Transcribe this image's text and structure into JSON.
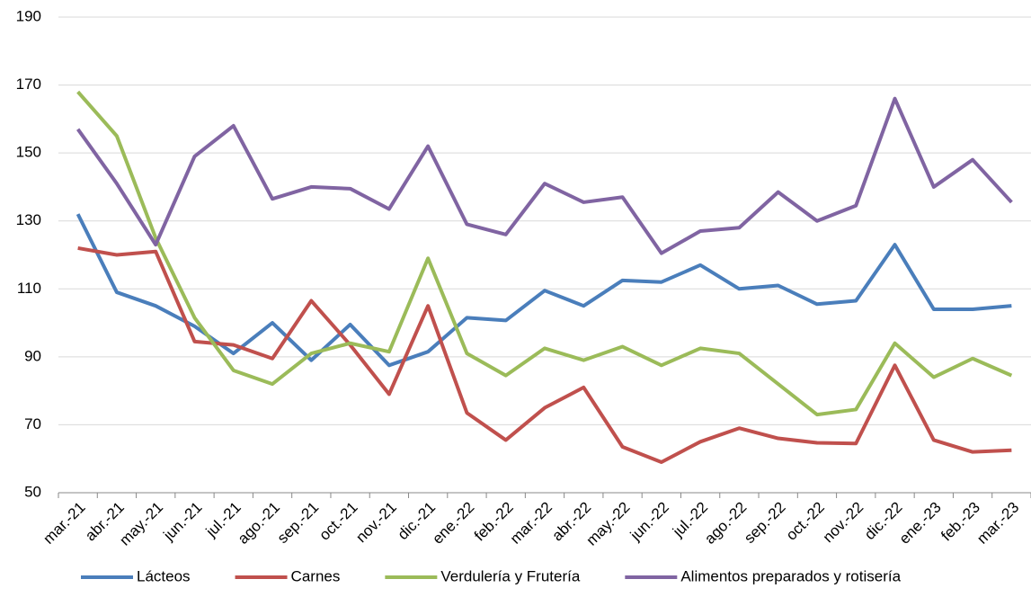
{
  "chart_data": {
    "type": "line",
    "categories": [
      "mar.-21",
      "abr.-21",
      "may.-21",
      "jun.-21",
      "jul.-21",
      "ago.-21",
      "sep.-21",
      "oct.-21",
      "nov.-21",
      "dic.-21",
      "ene.-22",
      "feb.-22",
      "mar.-22",
      "abr.-22",
      "may.-22",
      "jun.-22",
      "jul.-22",
      "ago.-22",
      "sep.-22",
      "oct.-22",
      "nov.-22",
      "dic.-22",
      "ene.-23",
      "feb.-23",
      "mar.-23"
    ],
    "series": [
      {
        "name": "Lácteos",
        "color": "#4a7ebb",
        "values": [
          132,
          109,
          105,
          99,
          91,
          100,
          89,
          99.5,
          87.5,
          91.5,
          101.5,
          100.7,
          109.5,
          105,
          112.5,
          112,
          117,
          110,
          111,
          105.5,
          106.5,
          123,
          104,
          104,
          105
        ]
      },
      {
        "name": "Carnes",
        "color": "#c0504d",
        "values": [
          122,
          120,
          121,
          94.5,
          93.5,
          89.5,
          106.5,
          93.5,
          79,
          105,
          73.5,
          65.5,
          75,
          81,
          63.5,
          59,
          65,
          69,
          66,
          64.7,
          64.5,
          87.5,
          65.5,
          62,
          62.5
        ]
      },
      {
        "name": "Verdulería y Frutería",
        "color": "#9bbb59",
        "values": [
          168,
          155,
          125,
          101.5,
          86,
          82,
          91,
          94,
          91.5,
          119,
          91,
          84.5,
          92.5,
          89,
          93,
          87.5,
          92.5,
          91,
          82,
          73,
          74.5,
          94,
          84,
          89.5,
          84.5
        ]
      },
      {
        "name": "Alimentos preparados y rotisería",
        "color": "#8064a2",
        "values": [
          157,
          141,
          123,
          149,
          158,
          136.5,
          140,
          139.5,
          133.5,
          152,
          129,
          126,
          141,
          135.5,
          137,
          120.5,
          127,
          128,
          138.5,
          130,
          134.5,
          166,
          140,
          148,
          135.5
        ]
      }
    ],
    "ylim": [
      50,
      190
    ],
    "yticks": [
      50,
      70,
      90,
      110,
      130,
      150,
      170,
      190
    ],
    "grid": true,
    "legend": "bottom"
  }
}
